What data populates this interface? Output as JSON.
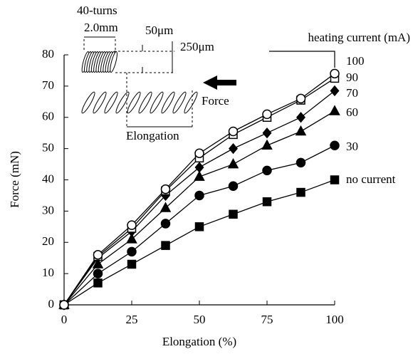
{
  "chart_data": {
    "type": "line",
    "x_label": "Elongation (%)",
    "y_label": "Force (mN)",
    "legend_title": "heating current (mA)",
    "annotations": [
      "40-turns",
      "2.0mm",
      "50μm",
      "250μm",
      "Force",
      "Elongation"
    ],
    "x": [
      0,
      12.5,
      25,
      37.5,
      50,
      62.5,
      75,
      87.5,
      100
    ],
    "xlim": [
      0,
      100
    ],
    "xticks": [
      0,
      25,
      50,
      75,
      100
    ],
    "ylim": [
      0,
      80
    ],
    "yticks": [
      0,
      10,
      20,
      30,
      40,
      50,
      60,
      70,
      80
    ],
    "series": [
      {
        "name": "100",
        "color": "#000000",
        "marker": "circle-open",
        "values": [
          0,
          16,
          25.5,
          37,
          48.5,
          55.5,
          61,
          66,
          74
        ]
      },
      {
        "name": "90",
        "color": "#000000",
        "marker": "square-open",
        "values": [
          0,
          15.5,
          24.5,
          36.5,
          47,
          54.5,
          60,
          65.5,
          72.5
        ]
      },
      {
        "name": "70",
        "color": "#000000",
        "marker": "diamond",
        "values": [
          0,
          15,
          23.5,
          35,
          44,
          50,
          55,
          60,
          68.5
        ]
      },
      {
        "name": "60",
        "color": "#000000",
        "marker": "triangle",
        "values": [
          0,
          13,
          21,
          31,
          41,
          45,
          51,
          55.5,
          62
        ]
      },
      {
        "name": "30",
        "color": "#000000",
        "marker": "circle",
        "values": [
          0,
          10,
          17,
          26,
          35,
          38,
          43,
          45.5,
          51
        ]
      },
      {
        "name": "no current",
        "color": "#000000",
        "marker": "square",
        "values": [
          0,
          7,
          13,
          19,
          25,
          29,
          33,
          36,
          40
        ]
      }
    ]
  }
}
